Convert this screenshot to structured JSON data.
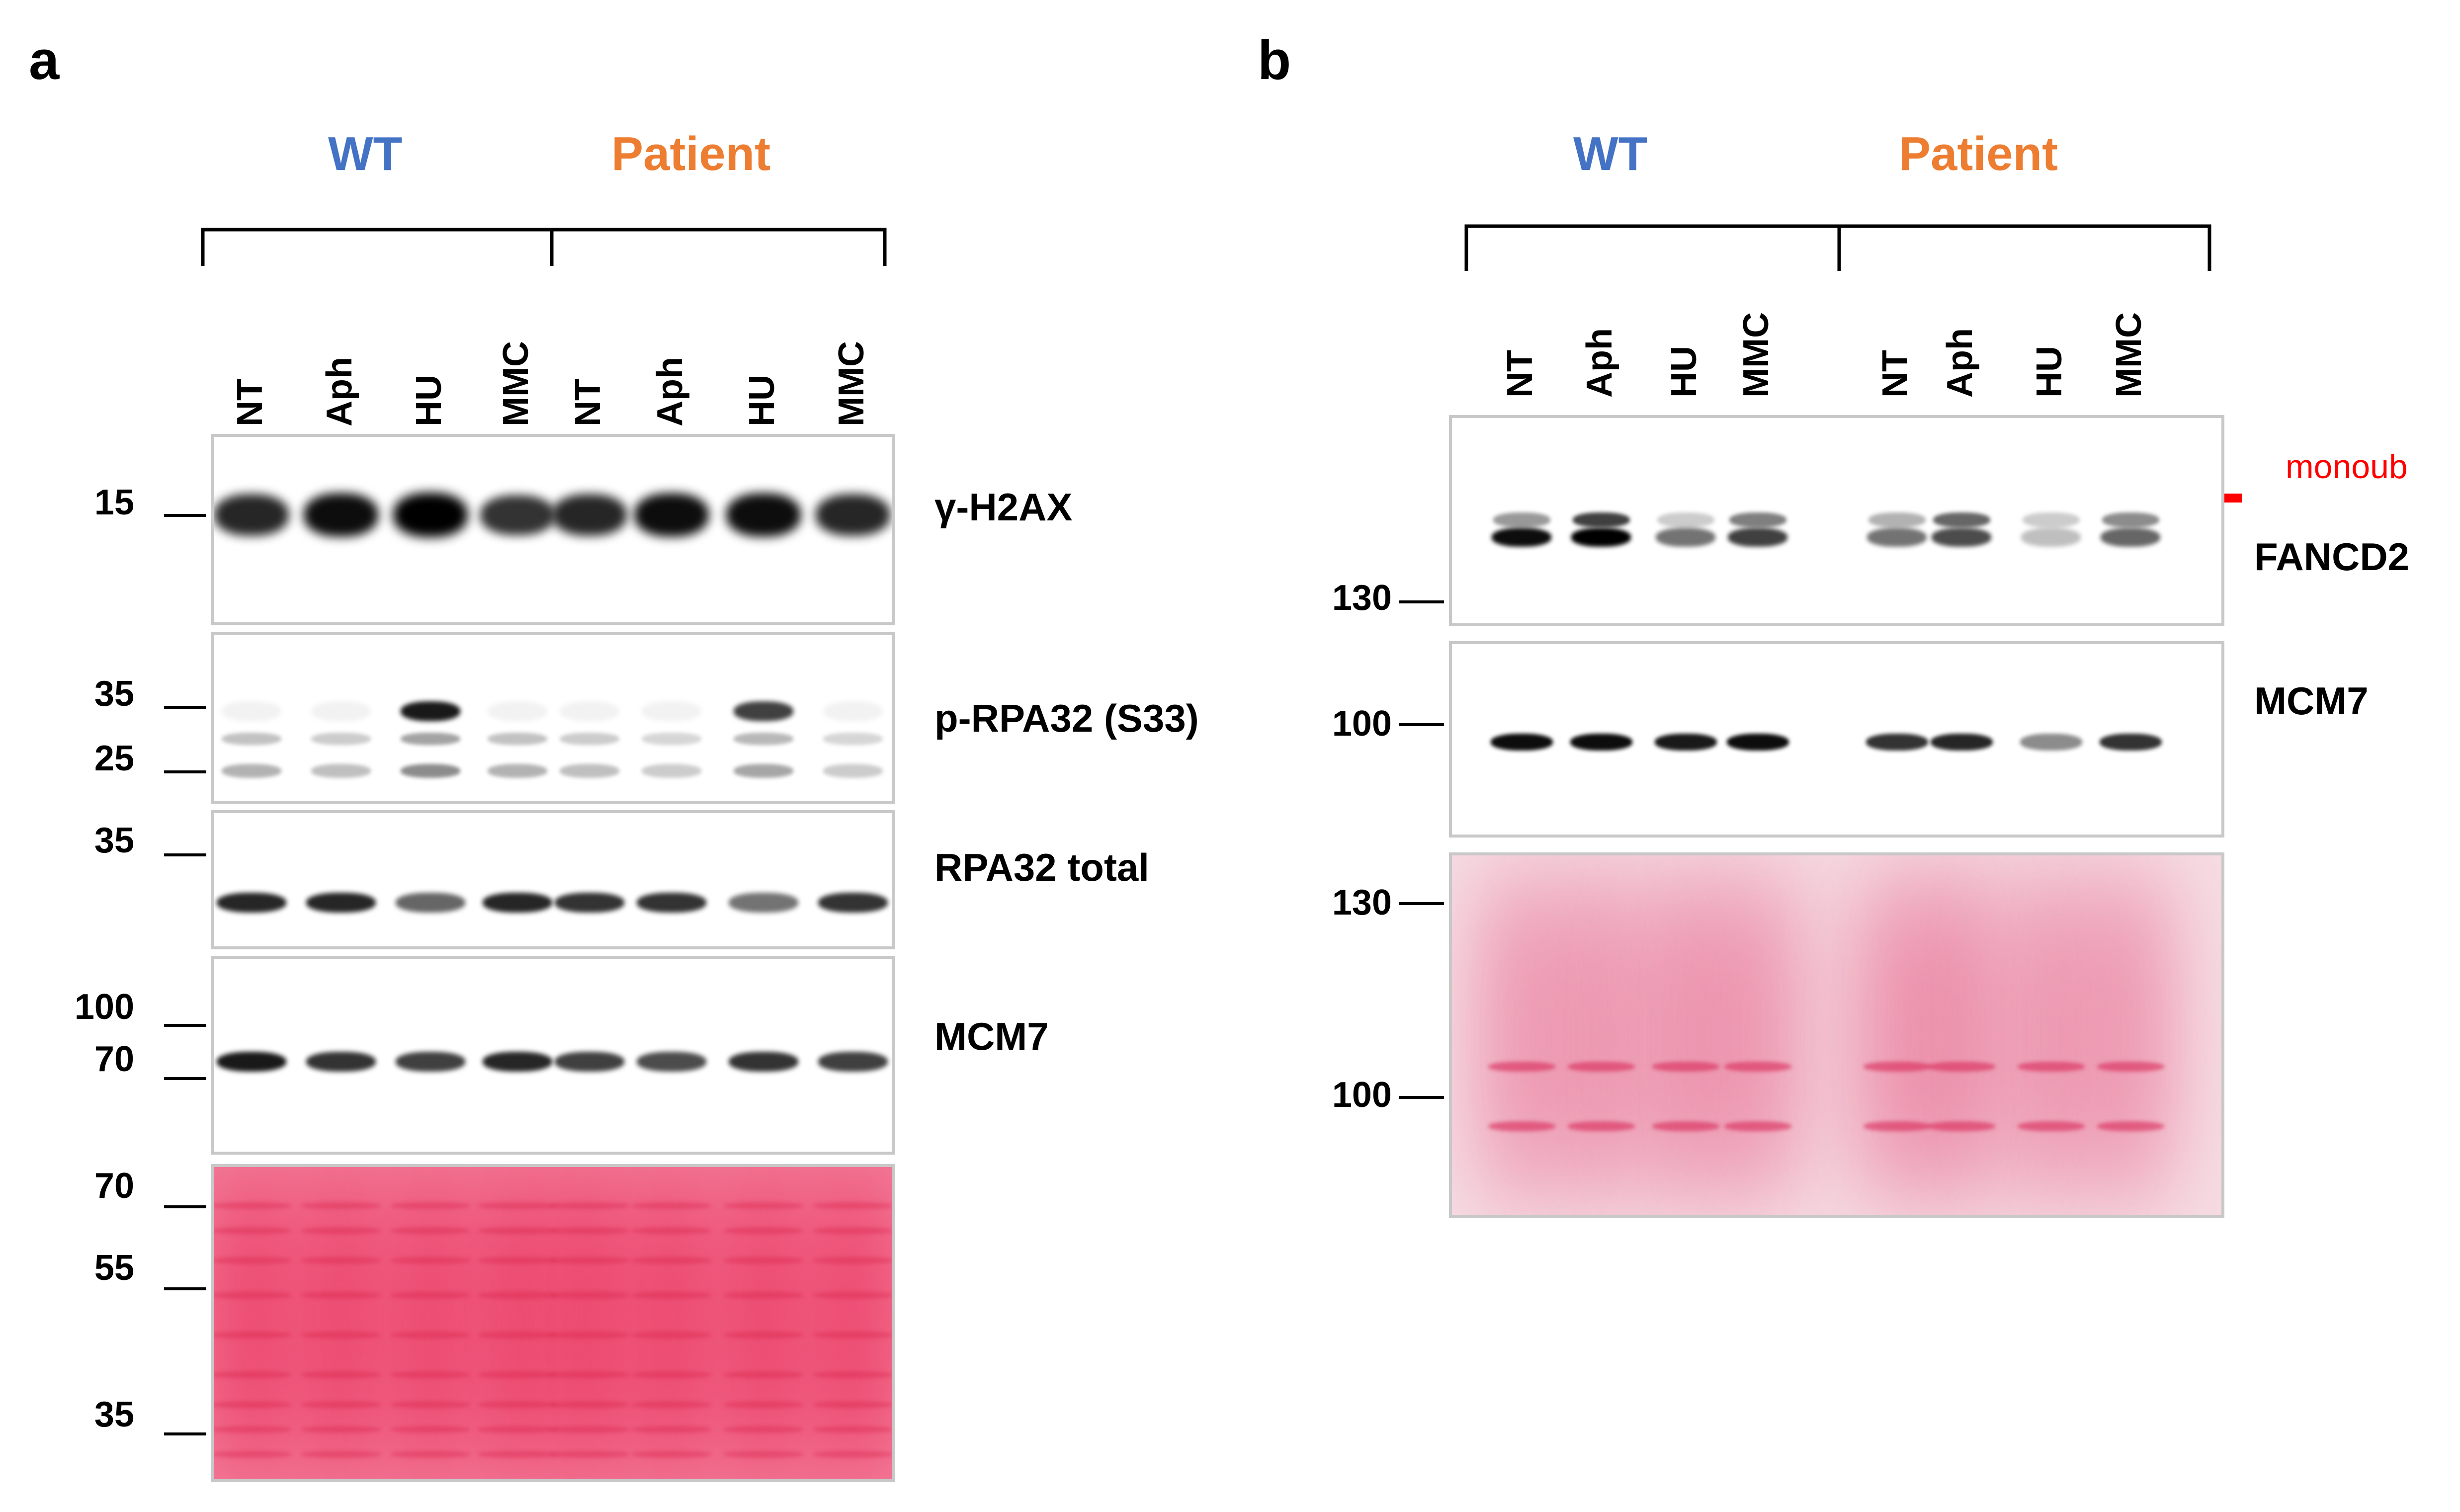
{
  "panel_a": {
    "label": "a",
    "groups": {
      "wt": "WT",
      "patient": "Patient"
    },
    "lanes": [
      "NT",
      "Aph",
      "HU",
      "MMC",
      "NT",
      "Aph",
      "HU",
      "MMC"
    ],
    "blots": {
      "h2ax": {
        "name": "γ-H2AX",
        "markers": [
          "15"
        ],
        "intensity": [
          0.85,
          0.95,
          1.0,
          0.8,
          0.85,
          0.95,
          0.95,
          0.85
        ]
      },
      "prpa": {
        "name": "p-RPA32 (S33)",
        "markers": [
          "35",
          "25"
        ],
        "upper_band": [
          0.05,
          0.05,
          0.9,
          0.05,
          0.05,
          0.05,
          0.75,
          0.05
        ],
        "lower_band": [
          0.3,
          0.25,
          0.45,
          0.3,
          0.25,
          0.2,
          0.35,
          0.2
        ]
      },
      "rpa_total": {
        "name": "RPA32 total",
        "markers": [
          "35"
        ],
        "intensity": [
          0.85,
          0.85,
          0.6,
          0.85,
          0.8,
          0.8,
          0.55,
          0.8
        ]
      },
      "mcm7": {
        "name": "MCM7",
        "markers": [
          "100",
          "70"
        ],
        "intensity": [
          0.9,
          0.8,
          0.75,
          0.85,
          0.75,
          0.7,
          0.8,
          0.75
        ]
      },
      "ponceau": {
        "markers": [
          "70",
          "55",
          "35"
        ]
      }
    }
  },
  "panel_b": {
    "label": "b",
    "groups": {
      "wt": "WT",
      "patient": "Patient"
    },
    "lanes": [
      "NT",
      "Aph",
      "HU",
      "MMC",
      "NT",
      "Aph",
      "HU",
      "MMC"
    ],
    "blots": {
      "fancd2": {
        "name": "FANCD2",
        "markers": [
          "130"
        ],
        "annotation": "monoub",
        "lower_band": [
          0.95,
          1.0,
          0.55,
          0.75,
          0.55,
          0.7,
          0.25,
          0.6
        ],
        "upper_band": [
          0.4,
          0.75,
          0.2,
          0.5,
          0.3,
          0.6,
          0.2,
          0.45
        ]
      },
      "mcm7": {
        "name": "MCM7",
        "markers": [
          "100"
        ],
        "intensity": [
          0.95,
          0.95,
          0.9,
          0.95,
          0.8,
          0.85,
          0.45,
          0.8
        ]
      },
      "ponceau": {
        "markers": [
          "130",
          "100"
        ]
      }
    }
  },
  "colors": {
    "wt": "#4472c4",
    "patient": "#ed7d31",
    "monoub_arrow": "#ff0000",
    "ponceau": "#f05a82"
  }
}
